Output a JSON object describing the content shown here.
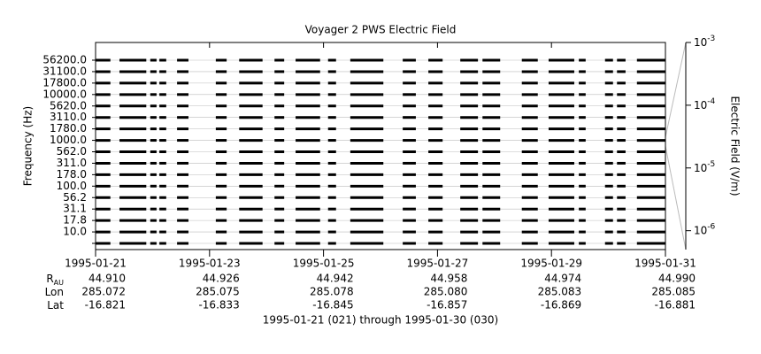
{
  "chart_data": {
    "type": "stack-coverage",
    "title": "Voyager 2 PWS Electric Field",
    "ylabel": "Frequency (Hz)",
    "y2label": "Electric Field (V/m)",
    "categories": [
      "56200.0",
      "31100.0",
      "17800.0",
      "10000.0",
      "5620.0",
      "3110.0",
      "1780.0",
      "1000.0",
      "562.0",
      "311.0",
      "178.0",
      "100.0",
      "56.2",
      "31.1",
      "17.8",
      "10.0",
      null
    ],
    "xlim": [
      0,
      10
    ],
    "xticks": [
      {
        "value": 0,
        "label": "1995-01-21"
      },
      {
        "value": 2,
        "label": "1995-01-23"
      },
      {
        "value": 4,
        "label": "1995-01-25"
      },
      {
        "value": 6,
        "label": "1995-01-27"
      },
      {
        "value": 8,
        "label": "1995-01-29"
      },
      {
        "value": 10,
        "label": "1995-01-31"
      }
    ],
    "y2log": true,
    "y2lim": [
      5e-07,
      0.001
    ],
    "y2ticks": [
      {
        "value": 0.001,
        "label": "10",
        "exponent": "-3"
      },
      {
        "value": 0.0001,
        "label": "10",
        "exponent": "-4"
      },
      {
        "value": 1e-05,
        "label": "10",
        "exponent": "-5"
      },
      {
        "value": 1e-06,
        "label": "10",
        "exponent": "-6"
      }
    ],
    "color": "#000000",
    "grid": true,
    "coverage": [
      [
        0,
        0.26
      ],
      [
        0.42,
        0.89
      ],
      [
        0.96,
        1.07
      ],
      [
        1.12,
        1.24
      ],
      [
        1.43,
        1.63
      ],
      [
        2.11,
        2.3
      ],
      [
        2.52,
        2.93
      ],
      [
        3.14,
        3.31
      ],
      [
        3.51,
        3.94
      ],
      [
        4.08,
        4.22
      ],
      [
        4.47,
        5.05
      ],
      [
        5.39,
        5.62
      ],
      [
        5.84,
        6.09
      ],
      [
        6.4,
        6.71
      ],
      [
        6.79,
        7.1
      ],
      [
        7.48,
        7.76
      ],
      [
        7.95,
        8.4
      ],
      [
        8.48,
        8.6
      ],
      [
        8.94,
        9.08
      ],
      [
        9.15,
        9.3
      ],
      [
        9.5,
        10
      ]
    ],
    "ephemeris": [
      {
        "name": "R",
        "sub": "AU",
        "values": [
          "44.910",
          "44.926",
          "44.942",
          "44.958",
          "44.974",
          "44.990"
        ]
      },
      {
        "name": "Lon",
        "values": [
          "285.072",
          "285.075",
          "285.078",
          "285.080",
          "285.083",
          "285.085"
        ]
      },
      {
        "name": "Lat",
        "values": [
          "-16.821",
          "-16.833",
          "-16.845",
          "-16.857",
          "-16.869",
          "-16.881"
        ]
      }
    ],
    "footer": "1995-01-21 (021) through 1995-01-30 (030)"
  }
}
